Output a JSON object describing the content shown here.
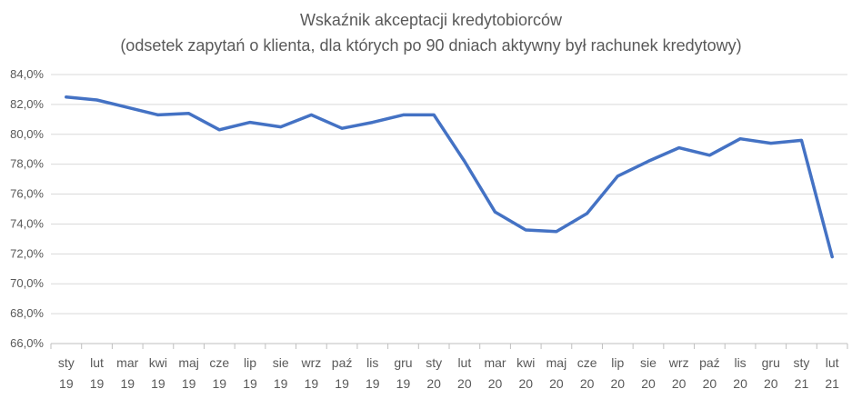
{
  "chart_data": {
    "type": "line",
    "title": "Wskaźnik akceptacji kredytobiorców",
    "subtitle": "(odsetek zapytań o klienta, dla których po 90 dniach aktywny był rachunek kredytowy)",
    "xlabel": "",
    "ylabel": "",
    "ylim": [
      66,
      84
    ],
    "yticks": [
      "66,0%",
      "68,0%",
      "70,0%",
      "72,0%",
      "74,0%",
      "76,0%",
      "78,0%",
      "80,0%",
      "82,0%",
      "84,0%"
    ],
    "grid": true,
    "legend": "none",
    "line_color": "#4472C4",
    "categories": [
      [
        "sty",
        "19"
      ],
      [
        "lut",
        "19"
      ],
      [
        "mar",
        "19"
      ],
      [
        "kwi",
        "19"
      ],
      [
        "maj",
        "19"
      ],
      [
        "cze",
        "19"
      ],
      [
        "lip",
        "19"
      ],
      [
        "sie",
        "19"
      ],
      [
        "wrz",
        "19"
      ],
      [
        "paź",
        "19"
      ],
      [
        "lis",
        "19"
      ],
      [
        "gru",
        "19"
      ],
      [
        "sty",
        "20"
      ],
      [
        "lut",
        "20"
      ],
      [
        "mar",
        "20"
      ],
      [
        "kwi",
        "20"
      ],
      [
        "maj",
        "20"
      ],
      [
        "cze",
        "20"
      ],
      [
        "lip",
        "20"
      ],
      [
        "sie",
        "20"
      ],
      [
        "wrz",
        "20"
      ],
      [
        "paź",
        "20"
      ],
      [
        "lis",
        "20"
      ],
      [
        "gru",
        "20"
      ],
      [
        "sty",
        "21"
      ],
      [
        "lut",
        "21"
      ]
    ],
    "series": [
      {
        "values": [
          82.5,
          82.3,
          81.8,
          81.3,
          81.4,
          80.3,
          80.8,
          80.5,
          81.3,
          80.4,
          80.8,
          81.3,
          81.3,
          78.2,
          74.8,
          73.6,
          73.5,
          74.7,
          77.2,
          78.2,
          79.1,
          78.6,
          79.7,
          79.4,
          79.6,
          71.8
        ]
      }
    ]
  }
}
